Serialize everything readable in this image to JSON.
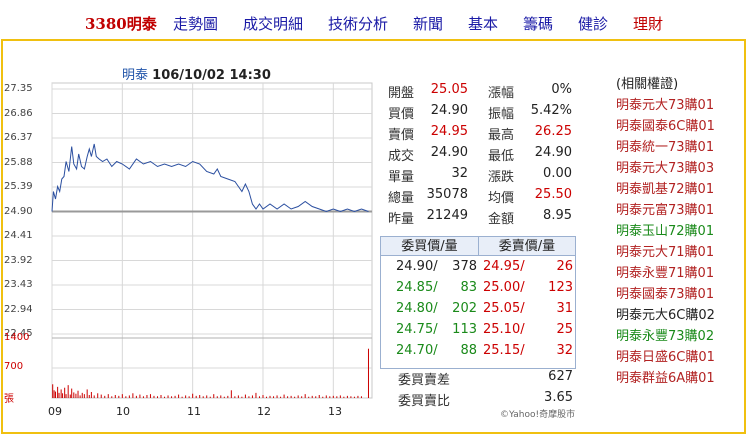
{
  "nav": {
    "items": [
      {
        "label": "3380明泰"
      },
      {
        "label": "走勢圖"
      },
      {
        "label": "成交明細"
      },
      {
        "label": "技術分析"
      },
      {
        "label": "新聞"
      },
      {
        "label": "基本"
      },
      {
        "label": "籌碼"
      },
      {
        "label": "健診"
      },
      {
        "label": "理財"
      }
    ]
  },
  "chart": {
    "stock_name": "明泰",
    "datetime": "106/10/02 14:30",
    "credit": "©Yahoo!奇摩股市"
  },
  "chart_data": {
    "type": "line",
    "price_ticks": [
      "27.35",
      "26.86",
      "26.37",
      "25.88",
      "25.39",
      "24.90",
      "24.41",
      "23.92",
      "23.43",
      "22.94",
      "22.45"
    ],
    "volume_ticks": [
      "1400",
      "700",
      "張"
    ],
    "x_ticks": [
      "09",
      "10",
      "11",
      "12",
      "13"
    ],
    "ylim": [
      22.45,
      27.35
    ],
    "reference_price": 24.9,
    "series": [
      {
        "values": [
          [
            9.0,
            24.9
          ],
          [
            9.02,
            25.3
          ],
          [
            9.05,
            25.15
          ],
          [
            9.08,
            25.4
          ],
          [
            9.11,
            25.3
          ],
          [
            9.14,
            25.55
          ],
          [
            9.17,
            25.6
          ],
          [
            9.2,
            25.9
          ],
          [
            9.24,
            25.7
          ],
          [
            9.28,
            26.2
          ],
          [
            9.31,
            25.85
          ],
          [
            9.35,
            25.75
          ],
          [
            9.38,
            26.05
          ],
          [
            9.42,
            25.8
          ],
          [
            9.46,
            25.75
          ],
          [
            9.5,
            26.0
          ],
          [
            9.53,
            26.15
          ],
          [
            9.56,
            26.0
          ],
          [
            9.6,
            26.25
          ],
          [
            9.63,
            26.0
          ],
          [
            9.67,
            25.95
          ],
          [
            9.72,
            25.9
          ],
          [
            9.78,
            25.95
          ],
          [
            9.85,
            25.8
          ],
          [
            9.92,
            25.9
          ],
          [
            10.0,
            25.85
          ],
          [
            10.1,
            25.75
          ],
          [
            10.2,
            25.95
          ],
          [
            10.3,
            25.85
          ],
          [
            10.4,
            25.9
          ],
          [
            10.5,
            25.8
          ],
          [
            10.6,
            25.85
          ],
          [
            10.7,
            25.8
          ],
          [
            10.8,
            25.85
          ],
          [
            10.9,
            25.8
          ],
          [
            11.0,
            25.9
          ],
          [
            11.1,
            25.85
          ],
          [
            11.2,
            25.7
          ],
          [
            11.3,
            25.65
          ],
          [
            11.35,
            25.75
          ],
          [
            11.4,
            25.6
          ],
          [
            11.5,
            25.55
          ],
          [
            11.6,
            25.5
          ],
          [
            11.7,
            25.3
          ],
          [
            11.75,
            25.45
          ],
          [
            11.8,
            25.3
          ],
          [
            11.85,
            25.05
          ],
          [
            11.9,
            24.95
          ],
          [
            11.95,
            25.05
          ],
          [
            12.0,
            24.95
          ],
          [
            12.1,
            25.05
          ],
          [
            12.2,
            24.95
          ],
          [
            12.3,
            25.05
          ],
          [
            12.4,
            24.95
          ],
          [
            12.5,
            25.0
          ],
          [
            12.6,
            25.1
          ],
          [
            12.7,
            25.0
          ],
          [
            12.8,
            24.95
          ],
          [
            12.9,
            24.9
          ],
          [
            13.0,
            24.95
          ],
          [
            13.1,
            24.9
          ],
          [
            13.2,
            24.95
          ],
          [
            13.3,
            24.9
          ],
          [
            13.4,
            24.95
          ],
          [
            13.5,
            24.9
          ]
        ]
      },
      {
        "values": [
          [
            9.01,
            320
          ],
          [
            9.03,
            180
          ],
          [
            9.05,
            150
          ],
          [
            9.08,
            260
          ],
          [
            9.1,
            120
          ],
          [
            9.13,
            200
          ],
          [
            9.15,
            110
          ],
          [
            9.18,
            240
          ],
          [
            9.2,
            90
          ],
          [
            9.23,
            300
          ],
          [
            9.26,
            80
          ],
          [
            9.28,
            220
          ],
          [
            9.31,
            130
          ],
          [
            9.34,
            100
          ],
          [
            9.37,
            170
          ],
          [
            9.4,
            60
          ],
          [
            9.43,
            120
          ],
          [
            9.46,
            90
          ],
          [
            9.5,
            200
          ],
          [
            9.53,
            70
          ],
          [
            9.56,
            140
          ],
          [
            9.6,
            60
          ],
          [
            9.65,
            110
          ],
          [
            9.7,
            80
          ],
          [
            9.75,
            50
          ],
          [
            9.8,
            90
          ],
          [
            9.85,
            40
          ],
          [
            9.9,
            70
          ],
          [
            9.95,
            50
          ],
          [
            10.0,
            90
          ],
          [
            10.05,
            40
          ],
          [
            10.1,
            60
          ],
          [
            10.15,
            110
          ],
          [
            10.2,
            50
          ],
          [
            10.25,
            80
          ],
          [
            10.3,
            40
          ],
          [
            10.35,
            70
          ],
          [
            10.4,
            90
          ],
          [
            10.45,
            50
          ],
          [
            10.5,
            40
          ],
          [
            10.55,
            70
          ],
          [
            10.6,
            30
          ],
          [
            10.65,
            60
          ],
          [
            10.7,
            40
          ],
          [
            10.75,
            50
          ],
          [
            10.8,
            80
          ],
          [
            10.85,
            30
          ],
          [
            10.9,
            60
          ],
          [
            10.95,
            40
          ],
          [
            11.0,
            100
          ],
          [
            11.05,
            50
          ],
          [
            11.1,
            70
          ],
          [
            11.15,
            40
          ],
          [
            11.2,
            60
          ],
          [
            11.25,
            30
          ],
          [
            11.3,
            90
          ],
          [
            11.35,
            40
          ],
          [
            11.4,
            60
          ],
          [
            11.45,
            30
          ],
          [
            11.5,
            50
          ],
          [
            11.55,
            180
          ],
          [
            11.6,
            40
          ],
          [
            11.65,
            60
          ],
          [
            11.7,
            30
          ],
          [
            11.75,
            80
          ],
          [
            11.8,
            40
          ],
          [
            11.85,
            60
          ],
          [
            11.9,
            120
          ],
          [
            11.95,
            40
          ],
          [
            12.0,
            70
          ],
          [
            12.05,
            30
          ],
          [
            12.1,
            50
          ],
          [
            12.15,
            40
          ],
          [
            12.2,
            60
          ],
          [
            12.25,
            30
          ],
          [
            12.3,
            80
          ],
          [
            12.35,
            40
          ],
          [
            12.4,
            50
          ],
          [
            12.45,
            30
          ],
          [
            12.5,
            60
          ],
          [
            12.55,
            40
          ],
          [
            12.6,
            90
          ],
          [
            12.65,
            30
          ],
          [
            12.7,
            50
          ],
          [
            12.75,
            40
          ],
          [
            12.8,
            70
          ],
          [
            12.85,
            30
          ],
          [
            12.9,
            60
          ],
          [
            12.95,
            40
          ],
          [
            13.0,
            50
          ],
          [
            13.05,
            40
          ],
          [
            13.1,
            60
          ],
          [
            13.15,
            30
          ],
          [
            13.2,
            50
          ],
          [
            13.25,
            40
          ],
          [
            13.3,
            30
          ],
          [
            13.35,
            50
          ],
          [
            13.4,
            40
          ],
          [
            13.5,
            1150
          ]
        ]
      }
    ]
  },
  "quote": {
    "rows": [
      {
        "l1": "開盤",
        "v1": "25.05",
        "c1": "red",
        "l2": "漲幅",
        "v2": "0%",
        "c2": "blk"
      },
      {
        "l1": "買價",
        "v1": "24.90",
        "c1": "blk",
        "l2": "振幅",
        "v2": "5.42%",
        "c2": "blk"
      },
      {
        "l1": "賣價",
        "v1": "24.95",
        "c1": "red",
        "l2": "最高",
        "v2": "26.25",
        "c2": "red"
      },
      {
        "l1": "成交",
        "v1": "24.90",
        "c1": "blk",
        "l2": "最低",
        "v2": "24.90",
        "c2": "blk"
      },
      {
        "l1": "單量",
        "v1": "32",
        "c1": "blk",
        "l2": "漲跌",
        "v2": "0.00",
        "c2": "blk"
      },
      {
        "l1": "總量",
        "v1": "35078",
        "c1": "blk",
        "l2": "均價",
        "v2": "25.50",
        "c2": "red"
      },
      {
        "l1": "昨量",
        "v1": "21249",
        "c1": "blk",
        "l2": "金額",
        "v2": "8.95",
        "c2": "blk"
      }
    ]
  },
  "orders": {
    "bid_header": "委買價/量",
    "ask_header": "委賣價/量",
    "rows": [
      {
        "bid_price": "24.90/",
        "bid_qty": "378",
        "ask_price": "24.95/",
        "ask_qty": "26"
      },
      {
        "bid_price": "24.85/",
        "bid_qty": "83",
        "ask_price": "25.00/",
        "ask_qty": "123"
      },
      {
        "bid_price": "24.80/",
        "bid_qty": "202",
        "ask_price": "25.05/",
        "ask_qty": "31"
      },
      {
        "bid_price": "24.75/",
        "bid_qty": "113",
        "ask_price": "25.10/",
        "ask_qty": "25"
      },
      {
        "bid_price": "24.70/",
        "bid_qty": "88",
        "ask_price": "25.15/",
        "ask_qty": "32"
      }
    ],
    "diff_label": "委買賣差",
    "diff_value": "627",
    "ratio_label": "委買賣比",
    "ratio_value": "3.65"
  },
  "warrants": {
    "header": "(相關權證)",
    "items": [
      {
        "label": "明泰元大73購01",
        "color": "#b22222"
      },
      {
        "label": "明泰國泰6C購01",
        "color": "#b22222"
      },
      {
        "label": "明泰統一73購01",
        "color": "#b22222"
      },
      {
        "label": "明泰元大73購03",
        "color": "#b22222"
      },
      {
        "label": "明泰凱基72購01",
        "color": "#b22222"
      },
      {
        "label": "明泰元富73購01",
        "color": "#b22222"
      },
      {
        "label": "明泰玉山72購01",
        "color": "#1a8a1a"
      },
      {
        "label": "明泰元大71購01",
        "color": "#b22222"
      },
      {
        "label": "明泰永豐71購01",
        "color": "#b22222"
      },
      {
        "label": "明泰國泰73購01",
        "color": "#b22222"
      },
      {
        "label": "明泰元大6C購02",
        "color": "#222222"
      },
      {
        "label": "明泰永豐73購02",
        "color": "#1a8a1a"
      },
      {
        "label": "明泰日盛6C購01",
        "color": "#b22222"
      },
      {
        "label": "明泰群益6A購01",
        "color": "#b22222"
      }
    ]
  }
}
